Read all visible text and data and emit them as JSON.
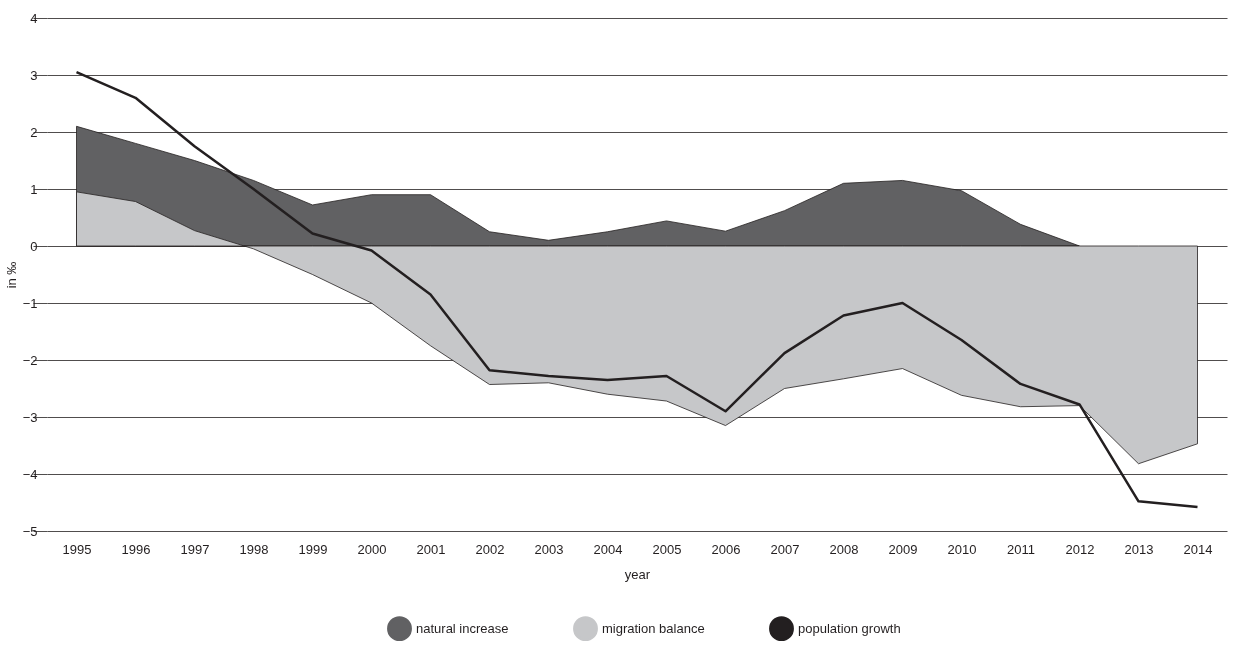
{
  "chart_data": {
    "type": "area",
    "xlabel": "year",
    "ylabel": "in ‰",
    "categories": [
      "1995",
      "1996",
      "1997",
      "1998",
      "1999",
      "2000",
      "2001",
      "2002",
      "2003",
      "2004",
      "2005",
      "2006",
      "2007",
      "2008",
      "2009",
      "2010",
      "2011",
      "2012",
      "2013",
      "2014"
    ],
    "series": [
      {
        "name": "natural increase",
        "color": "#616163",
        "values": [
          2.1,
          1.8,
          1.5,
          1.15,
          0.72,
          0.9,
          0.9,
          0.25,
          0.1,
          0.25,
          0.44,
          0.26,
          0.62,
          1.1,
          1.15,
          0.97,
          0.38,
          0.0,
          null,
          null
        ]
      },
      {
        "name": "migration balance",
        "color": "#c6c7c9",
        "values": [
          0.95,
          0.78,
          0.27,
          -0.05,
          -0.5,
          -1.0,
          -1.75,
          -2.43,
          -2.4,
          -2.6,
          -2.72,
          -3.15,
          -2.5,
          -2.33,
          -2.15,
          -2.62,
          -2.82,
          -2.8,
          -3.82,
          -3.47
        ]
      },
      {
        "name": "population growth",
        "type": "line",
        "color": "#231f20",
        "values": [
          3.05,
          2.6,
          1.75,
          1.0,
          0.22,
          -0.08,
          -0.85,
          -2.18,
          -2.28,
          -2.35,
          -2.28,
          -2.9,
          -1.88,
          -1.22,
          -1.0,
          -1.65,
          -2.42,
          -2.78,
          -4.48,
          -4.58
        ]
      }
    ],
    "ylim": [
      -5,
      4
    ],
    "yticks": [
      {
        "value": -5,
        "label": "−5"
      },
      {
        "value": -4,
        "label": "−4"
      },
      {
        "value": -3,
        "label": "−3"
      },
      {
        "value": -2,
        "label": "−2"
      },
      {
        "value": -1,
        "label": "−1"
      },
      0,
      1,
      2,
      3,
      4
    ],
    "grid": "y",
    "legend": "bottom",
    "line_style": "solid",
    "marker": "none"
  }
}
